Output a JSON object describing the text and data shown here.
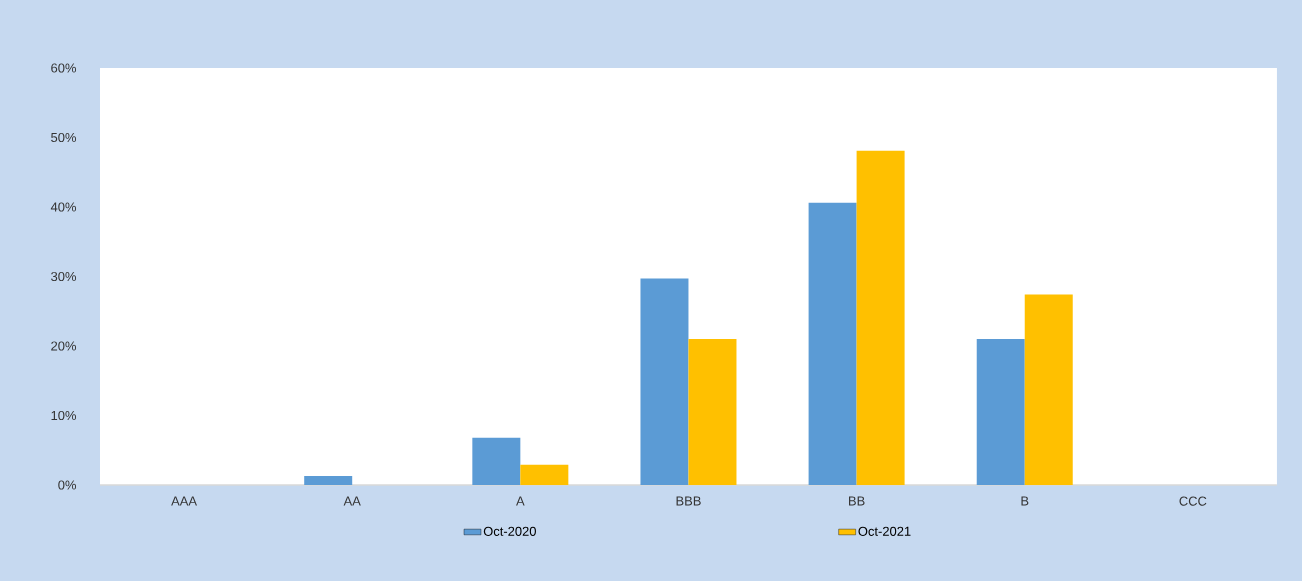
{
  "chart_data": {
    "type": "bar",
    "categories": [
      "AAA",
      "AA",
      "A",
      "BBB",
      "BB",
      "B",
      "CCC"
    ],
    "series": [
      {
        "name": "Oct-2020",
        "color": "#5b9bd5",
        "values": [
          0,
          1.3,
          6.8,
          29.7,
          40.6,
          21.0,
          0
        ]
      },
      {
        "name": "Oct-2021",
        "color": "#ffc000",
        "values": [
          0,
          0,
          2.9,
          21.0,
          48.1,
          27.4,
          0
        ]
      }
    ],
    "ylim": [
      0,
      60
    ],
    "yticks": [
      {
        "value": 0,
        "label": "0%"
      },
      {
        "value": 10,
        "label": "10%"
      },
      {
        "value": 20,
        "label": "20%"
      },
      {
        "value": 30,
        "label": "30%"
      },
      {
        "value": 40,
        "label": "40%"
      },
      {
        "value": 50,
        "label": "50%"
      },
      {
        "value": 60,
        "label": "60%"
      }
    ],
    "grid": false,
    "legend": "bottom"
  }
}
